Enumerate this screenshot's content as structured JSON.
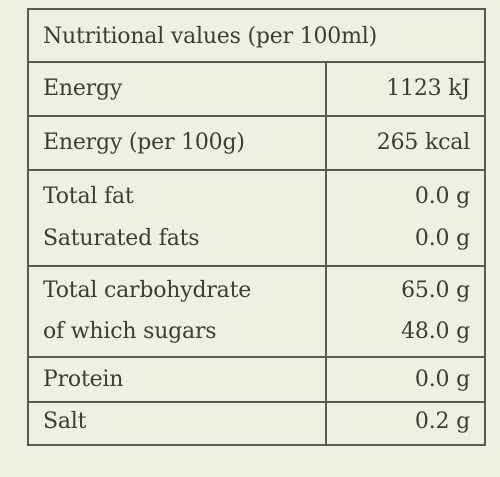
{
  "title": "Nutritional values (per 100ml)",
  "rows": [
    {
      "label": "Energy",
      "value": "1123 kJ"
    },
    {
      "label": "Energy (per 100g)",
      "value": "265 kcal"
    },
    {
      "label": "Total fat",
      "value": "0.0 g"
    },
    {
      "label": "Saturated fats",
      "value": "0.0 g"
    },
    {
      "label": "Total carbohydrate",
      "value": "65.0 g"
    },
    {
      "label": "of which sugars",
      "value": "48.0 g"
    },
    {
      "label": "Protein",
      "value": "0.0 g"
    },
    {
      "label": "Salt",
      "value": "0.2 g"
    }
  ],
  "colors": {
    "background": "#eef0e4",
    "text": "#3c3c38",
    "rule": "#5a5a55"
  }
}
